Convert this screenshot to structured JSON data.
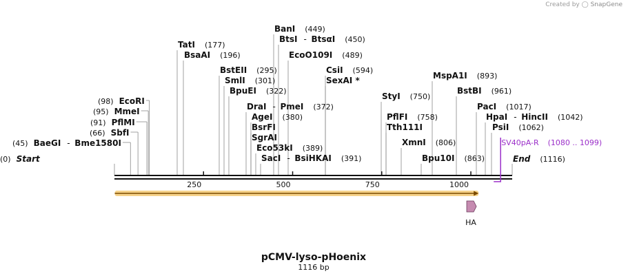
{
  "credit": {
    "prefix": "Created by",
    "brand": "SnapGene"
  },
  "title": "pCMV-lyso-pHoenix",
  "length_label": "1116 bp",
  "colors": {
    "backbone": "#111111",
    "orf": "#f0b43c",
    "orf_arrow": "#7a4a00",
    "feature": "#c58bb0",
    "primer": "#9b2fc9"
  },
  "sequence_length": 1116,
  "ticks": [
    {
      "value": 250,
      "label": "250"
    },
    {
      "value": 500,
      "label": "500"
    },
    {
      "value": 750,
      "label": "750"
    },
    {
      "value": 1000,
      "label": "1000"
    }
  ],
  "features": [
    {
      "name": "HA",
      "start": 1000,
      "end": 1010
    }
  ],
  "orf": {
    "start": 1,
    "end": 1010
  },
  "primers": [
    {
      "name": "SV40pA-R",
      "range": "(1080 .. 1099)",
      "pos": 1099
    }
  ],
  "sites": [
    {
      "name": "Start",
      "pos": 0,
      "label": "(0)",
      "italic": true
    },
    {
      "name": "BaeGI",
      "partner": "Bme1580I",
      "pos": 45,
      "label": "(45)"
    },
    {
      "name": "SbfI",
      "pos": 66,
      "label": "(66)"
    },
    {
      "name": "PflMI",
      "pos": 91,
      "label": "(91)"
    },
    {
      "name": "MmeI",
      "pos": 95,
      "label": "(95)"
    },
    {
      "name": "EcoRI",
      "pos": 98,
      "label": "(98)"
    },
    {
      "name": "TatI",
      "pos": 177,
      "label": "(177)"
    },
    {
      "name": "BsaAI",
      "pos": 196,
      "label": "(196)"
    },
    {
      "name": "BstEII",
      "pos": 295,
      "label": "(295)"
    },
    {
      "name": "SmlI",
      "pos": 301,
      "label": "(301)"
    },
    {
      "name": "BpuEI",
      "pos": 322,
      "label": "(322)"
    },
    {
      "name": "DraI",
      "partner": "PmeI",
      "pos": 372,
      "label": "(372)"
    },
    {
      "name": "AgeI",
      "pos": 380,
      "label": "(380)"
    },
    {
      "name": "BsrFI",
      "pos": 380,
      "label": ""
    },
    {
      "name": "SgrAI",
      "pos": 380,
      "label": ""
    },
    {
      "name": "Eco53kI",
      "pos": 389,
      "label": "(389)"
    },
    {
      "name": "SacI",
      "partner": "BsiHKAI",
      "pos": 391,
      "label": "(391)"
    },
    {
      "name": "BanI",
      "pos": 449,
      "label": "(449)"
    },
    {
      "name": "BtsI",
      "partner": "BtsαI",
      "pos": 450,
      "label": "(450)"
    },
    {
      "name": "EcoO109I",
      "pos": 489,
      "label": "(489)"
    },
    {
      "name": "CsiI",
      "pos": 594,
      "label": "(594)"
    },
    {
      "name": "SexAI *",
      "pos": 594,
      "label": ""
    },
    {
      "name": "StyI",
      "pos": 750,
      "label": "(750)"
    },
    {
      "name": "PflFI",
      "pos": 758,
      "label": "(758)"
    },
    {
      "name": "Tth111I",
      "pos": 758,
      "label": ""
    },
    {
      "name": "XmnI",
      "pos": 806,
      "label": "(806)"
    },
    {
      "name": "Bpu10I",
      "pos": 863,
      "label": "(863)"
    },
    {
      "name": "MspA1I",
      "pos": 893,
      "label": "(893)"
    },
    {
      "name": "BstBI",
      "pos": 961,
      "label": "(961)"
    },
    {
      "name": "PacI",
      "pos": 1017,
      "label": "(1017)"
    },
    {
      "name": "HpaI",
      "partner": "HincII",
      "pos": 1042,
      "label": "(1042)"
    },
    {
      "name": "PsiI",
      "pos": 1062,
      "label": "(1062)"
    },
    {
      "name": "End",
      "pos": 1116,
      "label": "(1116)",
      "italic": true
    }
  ]
}
